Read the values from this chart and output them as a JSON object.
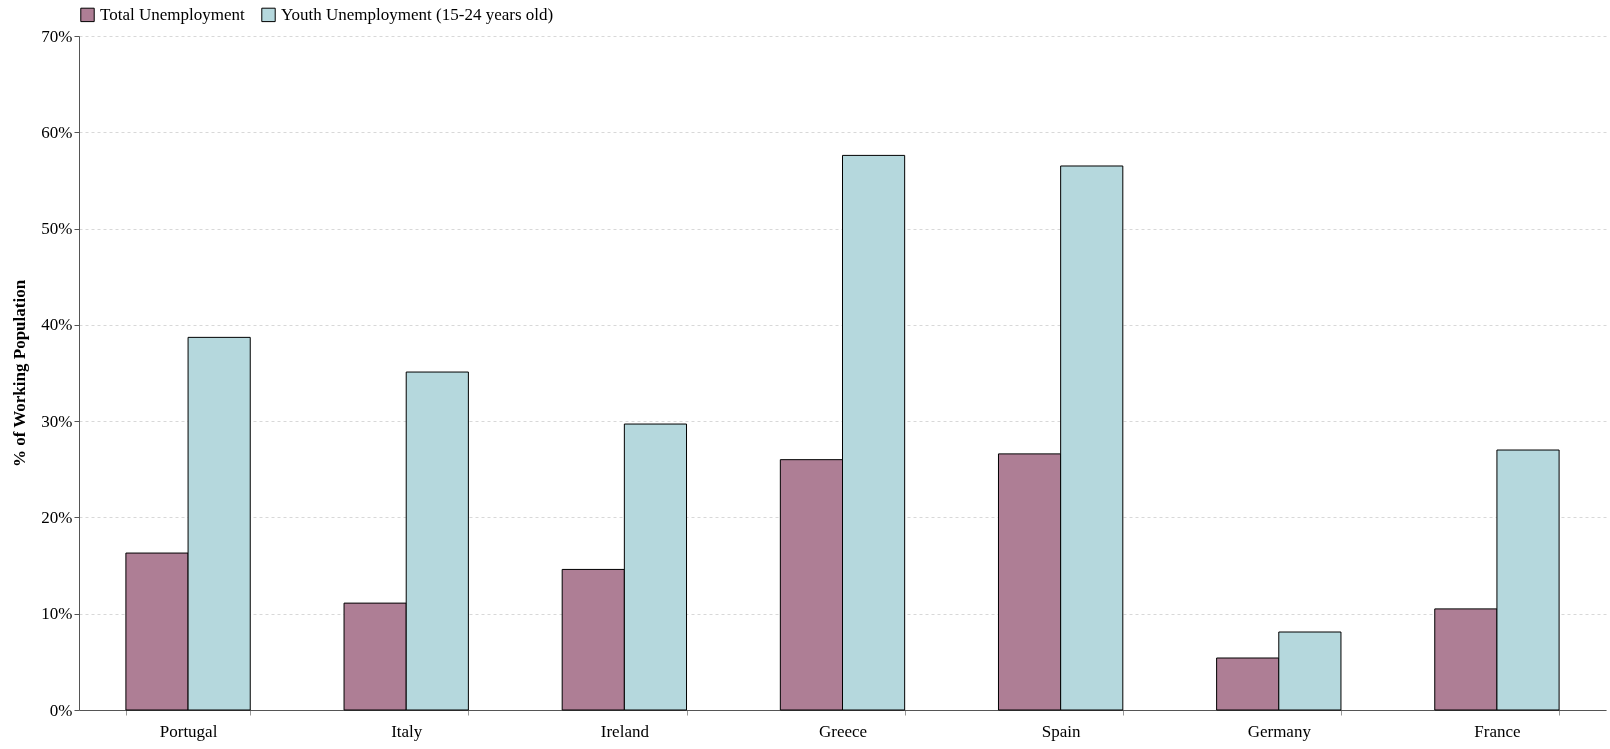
{
  "chart_data": {
    "type": "bar",
    "ylabel": "% of Working Population",
    "categories": [
      "Portugal",
      "Italy",
      "Ireland",
      "Greece",
      "Spain",
      "Germany",
      "France"
    ],
    "series": [
      {
        "name": "Total Unemployment",
        "color": "#ae7e95",
        "values": [
          16.3,
          11.1,
          14.6,
          26.0,
          26.6,
          5.4,
          10.5
        ]
      },
      {
        "name": "Youth Unemployment (15-24 years old)",
        "color": "#b5d8dd",
        "values": [
          38.7,
          35.1,
          29.7,
          57.6,
          56.5,
          8.1,
          27.0
        ]
      }
    ],
    "ylim": [
      0,
      70
    ],
    "yticks": [
      {
        "value": 0,
        "label": "0%"
      },
      {
        "value": 10,
        "label": "10%"
      },
      {
        "value": 20,
        "label": "20%"
      },
      {
        "value": 30,
        "label": "30%"
      },
      {
        "value": 40,
        "label": "40%"
      },
      {
        "value": 50,
        "label": "50%"
      },
      {
        "value": 60,
        "label": "60%"
      },
      {
        "value": 70,
        "label": "70%"
      }
    ],
    "grid": "y",
    "legend": "top"
  }
}
